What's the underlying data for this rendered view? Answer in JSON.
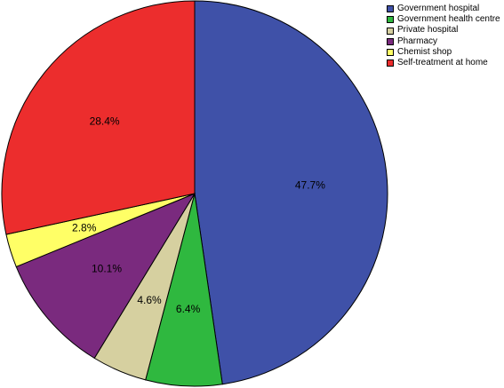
{
  "chart_data": {
    "type": "pie",
    "title": "",
    "legend_position": "top-right",
    "start_angle": "12 o'clock, clockwise",
    "slices": [
      {
        "label": "Government hospital",
        "value": 47.7,
        "display": "47.7%",
        "color": "#3f51a8"
      },
      {
        "label": "Government health centre",
        "value": 6.4,
        "display": "6.4%",
        "color": "#2fb83f"
      },
      {
        "label": "Private hospital",
        "value": 4.6,
        "display": "4.6%",
        "color": "#d6d0a0"
      },
      {
        "label": "Pharmacy",
        "value": 10.1,
        "display": "10.1%",
        "color": "#7a2a7e"
      },
      {
        "label": "Chemist shop",
        "value": 2.8,
        "display": "2.8%",
        "color": "#ffff66"
      },
      {
        "label": "Self-treatment at home",
        "value": 28.4,
        "display": "28.4%",
        "color": "#ec2d2d"
      }
    ]
  }
}
